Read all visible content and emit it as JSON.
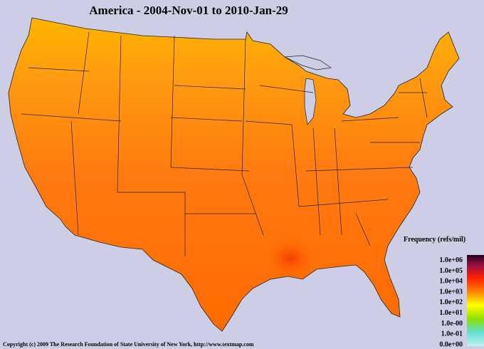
{
  "title": "America - 2004-Nov-01 to 2010-Jan-29",
  "legend": {
    "title": "Frequency (refs/mil)",
    "labels": [
      "1.0e+06",
      "1.0e+05",
      "1.0e+04",
      "1.0e+03",
      "1.0e+02",
      "1.0e+01",
      "1.0e-00",
      "1.0e-01",
      "0.0e+00"
    ]
  },
  "footer": "Copyright (c) 2009 The Research Foundation of State University of New York, http://www.textmap.com"
}
